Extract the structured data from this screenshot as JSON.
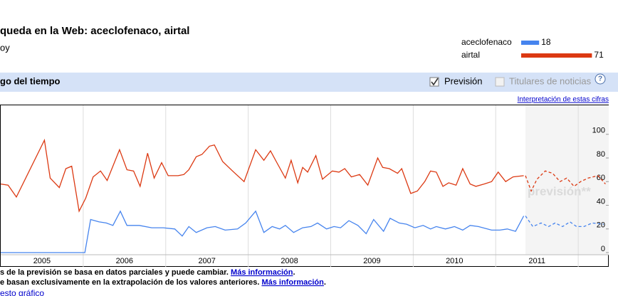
{
  "header": {
    "title": "queda en la Web: aceclofenaco, airtal",
    "subtitle": "oy"
  },
  "section": {
    "title": "go del tiempo",
    "forecast_label": "Previsión",
    "news_label": "Titulares de noticias",
    "help": "?",
    "link": "Interpretación de estas cifras"
  },
  "notes": [
    {
      "text": "s de la previsión se basa en datos parciales y puede cambiar. ",
      "link": "Más información",
      "end": "."
    },
    {
      "text": "e basan exclusivamente en la extrapolación de los valores anteriores. ",
      "link": "Más información",
      "end": "."
    }
  ],
  "footer_link": "esto gráfico",
  "chart_data": {
    "type": "line",
    "watermark": "previsión**",
    "xlim": [
      2005.0,
      2012.37
    ],
    "xticks": [
      {
        "value": 2005.5,
        "label": "2005"
      },
      {
        "value": 2006.5,
        "label": "2006"
      },
      {
        "value": 2007.5,
        "label": "2007"
      },
      {
        "value": 2008.5,
        "label": "2008"
      },
      {
        "value": 2009.5,
        "label": "2009"
      },
      {
        "value": 2010.5,
        "label": "2010"
      },
      {
        "value": 2011.5,
        "label": "2011"
      }
    ],
    "xgrid": [
      2006,
      2007,
      2008,
      2009,
      2010,
      2011,
      2012
    ],
    "ylim": [
      -1.8,
      124.5
    ],
    "yticks": [
      0,
      20,
      40,
      60,
      80,
      100
    ],
    "series": [
      {
        "name": "aceclofenaco",
        "color": "#4684ee",
        "total": 18,
        "x": [
          2005.0,
          2006.02,
          2006.09,
          2006.19,
          2006.28,
          2006.36,
          2006.45,
          2006.53,
          2006.68,
          2006.83,
          2006.97,
          2007.11,
          2007.2,
          2007.28,
          2007.37,
          2007.5,
          2007.6,
          2007.72,
          2007.87,
          2007.97,
          2008.09,
          2008.19,
          2008.29,
          2008.38,
          2008.45,
          2008.55,
          2008.66,
          2008.76,
          2008.84,
          2008.95,
          2009.04,
          2009.12,
          2009.22,
          2009.33,
          2009.43,
          2009.52,
          2009.64,
          2009.72,
          2009.83,
          2009.92,
          2010.02,
          2010.12,
          2010.21,
          2010.28,
          2010.39,
          2010.5,
          2010.6,
          2010.69,
          2010.79,
          2010.95,
          2011.05,
          2011.14,
          2011.24,
          2011.34
        ],
        "values": [
          0,
          0,
          28,
          26,
          25,
          23,
          35,
          23,
          23,
          21,
          21,
          20,
          14,
          22,
          17,
          21,
          22,
          19,
          20,
          25,
          35,
          17,
          22,
          20,
          23,
          17,
          21,
          22,
          25,
          20,
          22,
          21,
          27,
          23,
          16,
          28,
          18,
          29,
          25,
          24,
          21,
          23,
          20,
          22,
          20,
          22,
          19,
          23,
          22,
          19,
          19,
          20,
          18,
          31
        ],
        "forecast_x": [
          2011.36,
          2011.45,
          2011.55,
          2011.64,
          2011.72,
          2011.81,
          2011.9,
          2011.98,
          2012.07,
          2012.17,
          2012.31
        ],
        "forecast_values": [
          31,
          22,
          25,
          22,
          25,
          22,
          26,
          22,
          22,
          25,
          24
        ]
      },
      {
        "name": "airtal",
        "color": "#dc3912",
        "total": 71,
        "x": [
          2005.0,
          2005.09,
          2005.19,
          2005.53,
          2005.6,
          2005.71,
          2005.79,
          2005.86,
          2005.95,
          2006.03,
          2006.12,
          2006.21,
          2006.29,
          2006.44,
          2006.53,
          2006.61,
          2006.69,
          2006.78,
          2006.86,
          2006.95,
          2007.03,
          2007.15,
          2007.22,
          2007.28,
          2007.37,
          2007.44,
          2007.53,
          2007.59,
          2007.69,
          2007.81,
          2007.95,
          2008.09,
          2008.19,
          2008.27,
          2008.34,
          2008.45,
          2008.52,
          2008.6,
          2008.66,
          2008.72,
          2008.82,
          2008.9,
          2009.02,
          2009.1,
          2009.17,
          2009.25,
          2009.35,
          2009.45,
          2009.57,
          2009.63,
          2009.71,
          2009.81,
          2009.86,
          2009.97,
          2010.05,
          2010.14,
          2010.21,
          2010.28,
          2010.36,
          2010.43,
          2010.52,
          2010.6,
          2010.69,
          2010.76,
          2010.86,
          2010.95,
          2011.03,
          2011.12,
          2011.21,
          2011.34
        ],
        "values": [
          58,
          57,
          47,
          95,
          63,
          55,
          71,
          73,
          35,
          46,
          64,
          69,
          61,
          87,
          70,
          69,
          56,
          84,
          63,
          76,
          65,
          65,
          66,
          70,
          81,
          83,
          90,
          91,
          77,
          69,
          60,
          87,
          78,
          86,
          77,
          63,
          78,
          59,
          72,
          68,
          82,
          62,
          69,
          68,
          71,
          64,
          66,
          57,
          80,
          72,
          71,
          67,
          71,
          50,
          52,
          60,
          69,
          68,
          56,
          59,
          57,
          71,
          58,
          56,
          58,
          60,
          68,
          60,
          64,
          65
        ],
        "forecast_x": [
          2011.36,
          2011.43,
          2011.5,
          2011.6,
          2011.69,
          2011.78,
          2011.86,
          2011.95,
          2012.03,
          2012.12,
          2012.24,
          2012.33
        ],
        "forecast_values": [
          65,
          52,
          62,
          69,
          67,
          60,
          63,
          56,
          60,
          63,
          65,
          58
        ]
      }
    ]
  }
}
